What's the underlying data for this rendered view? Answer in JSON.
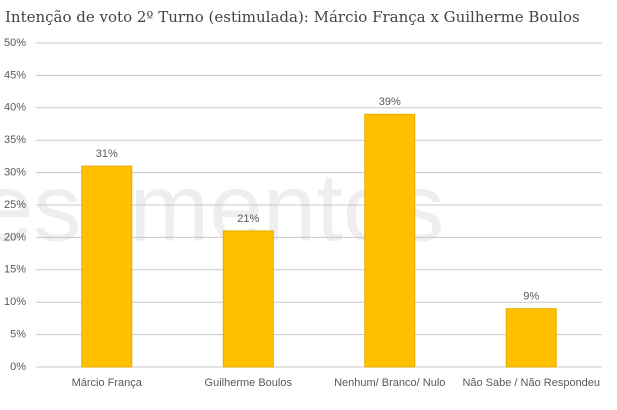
{
  "chart_data": {
    "type": "bar",
    "title": "Intenção de voto 2º Turno (estimulada): Márcio França x Guilherme Boulos",
    "watermark": "estimentos",
    "categories": [
      "Márcio França",
      "Guilherme Boulos",
      "Nenhum/ Branco/ Nulo",
      "Não Sabe / Não Respondeu"
    ],
    "values": [
      31,
      21,
      39,
      9
    ],
    "value_labels": [
      "31%",
      "21%",
      "39%",
      "9%"
    ],
    "color": "#ffc000",
    "ylim": [
      0,
      50
    ],
    "yticks": [
      {
        "value": 0,
        "label": "0%"
      },
      {
        "value": 5,
        "label": "5%"
      },
      {
        "value": 10,
        "label": "10%"
      },
      {
        "value": 15,
        "label": "15%"
      },
      {
        "value": 20,
        "label": "20%"
      },
      {
        "value": 25,
        "label": "25%"
      },
      {
        "value": 30,
        "label": "30%"
      },
      {
        "value": 35,
        "label": "35%"
      },
      {
        "value": 40,
        "label": "40%"
      },
      {
        "value": 45,
        "label": "45%"
      },
      {
        "value": 50,
        "label": "50%"
      }
    ],
    "grid": true
  }
}
